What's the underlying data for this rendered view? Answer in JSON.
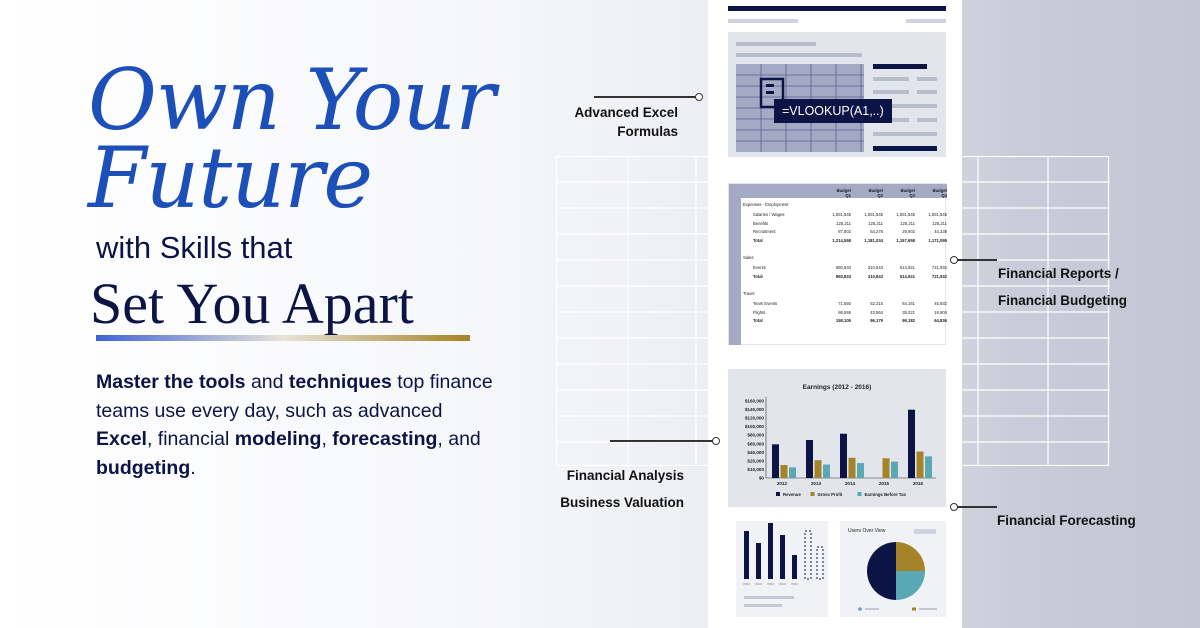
{
  "headline": {
    "line1": "Own Your",
    "line2": "Future",
    "line3": "with Skills that",
    "line4": "Set You Apart"
  },
  "body": {
    "s1": "Master the tools",
    "s2": " and ",
    "s3": "techniques",
    "s4": " top finance teams use every day, such as advanced ",
    "s5": "Excel",
    "s6": ", financial ",
    "s7": "modeling",
    "s8": ", ",
    "s9": "forecasting",
    "s10": ", and ",
    "s11": "budgeting",
    "s12": "."
  },
  "formula": "=VLOOKUP(A1,..)",
  "callouts": {
    "excel_1": "Advanced Excel",
    "excel_2": "Formulas",
    "reports_1": "Financial Reports /",
    "reports_2": "Financial Budgeting",
    "analysis_1": "Financial Analysis",
    "analysis_2": "Business Valuation",
    "forecasting": "Financial Forecasting"
  },
  "budget_table": {
    "headers": [
      "Budget Q1",
      "Budget Q2",
      "Budget Q3",
      "Budget Q4"
    ],
    "sections": [
      {
        "title": "Expenses - Employment",
        "rows": [
          [
            "Salaries / Wages",
            "1,001,545",
            "1,001,545",
            "1,001,545",
            "1,001,545"
          ],
          [
            "Benefits",
            "125,211",
            "125,211",
            "125,211",
            "125,211"
          ],
          [
            "Recruitment",
            "87,802",
            "54,278",
            "29,902",
            "44,339"
          ],
          [
            "Total",
            "1,214,558",
            "1,181,034",
            "1,157,658",
            "1,171,095"
          ]
        ]
      },
      {
        "title": "Sales",
        "rows": [
          [
            "Events",
            "860,833",
            "310,843",
            "514,921",
            "721,932"
          ],
          [
            "Total",
            "860,833",
            "310,843",
            "514,921",
            "721,932"
          ]
        ]
      },
      {
        "title": "Travel",
        "rows": [
          [
            "Team Events",
            "71,550",
            "52,315",
            "64,161",
            "45,932"
          ],
          [
            "Flights",
            "86,555",
            "43,864",
            "35,021",
            "18,904"
          ],
          [
            "Total",
            "158,105",
            "96,179",
            "99,182",
            "64,836"
          ]
        ]
      }
    ]
  },
  "chart_data": [
    {
      "type": "bar",
      "title": "Earnings (2012 - 2016)",
      "categories": [
        "2012",
        "2013",
        "2014",
        "2015",
        "2016"
      ],
      "series": [
        {
          "name": "Revenue",
          "values": [
            70000,
            79000,
            92000,
            0,
            142000
          ],
          "color": "#0b1445"
        },
        {
          "name": "Gross Profit",
          "values": [
            27000,
            37000,
            42000,
            41000,
            55000
          ],
          "color": "#a58328"
        },
        {
          "name": "Earnings Before Tax",
          "values": [
            22000,
            28000,
            31000,
            34000,
            45000
          ],
          "color": "#5aa8b4"
        }
      ],
      "yticks": [
        "$160,000",
        "$140,000",
        "$120,000",
        "$100,000",
        "$80,000",
        "$60,000",
        "$40,000",
        "$20,000",
        "$10,000",
        "$0"
      ],
      "ylim": [
        0,
        160000
      ],
      "legend": "bottom"
    },
    {
      "type": "pie",
      "title": "Users Over View",
      "values": [
        50,
        25,
        25
      ],
      "colors": [
        "#0b1445",
        "#a58328",
        "#5aa8b4"
      ]
    }
  ],
  "colors": {
    "accent_blue": "#1d4fb8",
    "navy": "#0b1445",
    "gold": "#a58328",
    "teal": "#5aa8b4"
  }
}
